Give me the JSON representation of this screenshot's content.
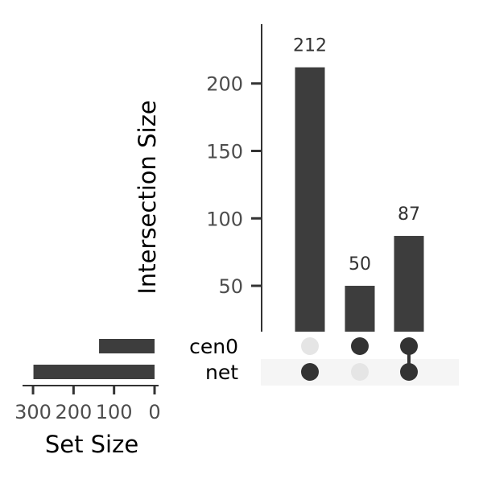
{
  "chart_data": {
    "type": "bar",
    "subtype": "upset",
    "intersections": {
      "ylabel": "Intersection Size",
      "ylim": [
        16,
        244
      ],
      "yticks": [
        50,
        100,
        150,
        200
      ],
      "values": [
        212,
        50,
        87
      ],
      "labels": [
        "212",
        "50",
        "87"
      ],
      "memberships": [
        [
          "net"
        ],
        [
          "cen0"
        ],
        [
          "cen0",
          "net"
        ]
      ]
    },
    "sets": {
      "names": [
        "cen0",
        "net"
      ],
      "sizes": [
        137,
        299
      ],
      "xlabel": "Set Size",
      "xlim": [
        0,
        312
      ],
      "xticks": [
        300,
        200,
        100,
        0
      ],
      "xtick_labels": [
        "300",
        "200",
        "100",
        "0"
      ]
    },
    "colors": {
      "bar": "#3d3d3d",
      "dot_active": "#333333",
      "dot_inactive": "#e5e5e5",
      "row_shade": "#f5f5f5",
      "axis": "#333333"
    }
  }
}
